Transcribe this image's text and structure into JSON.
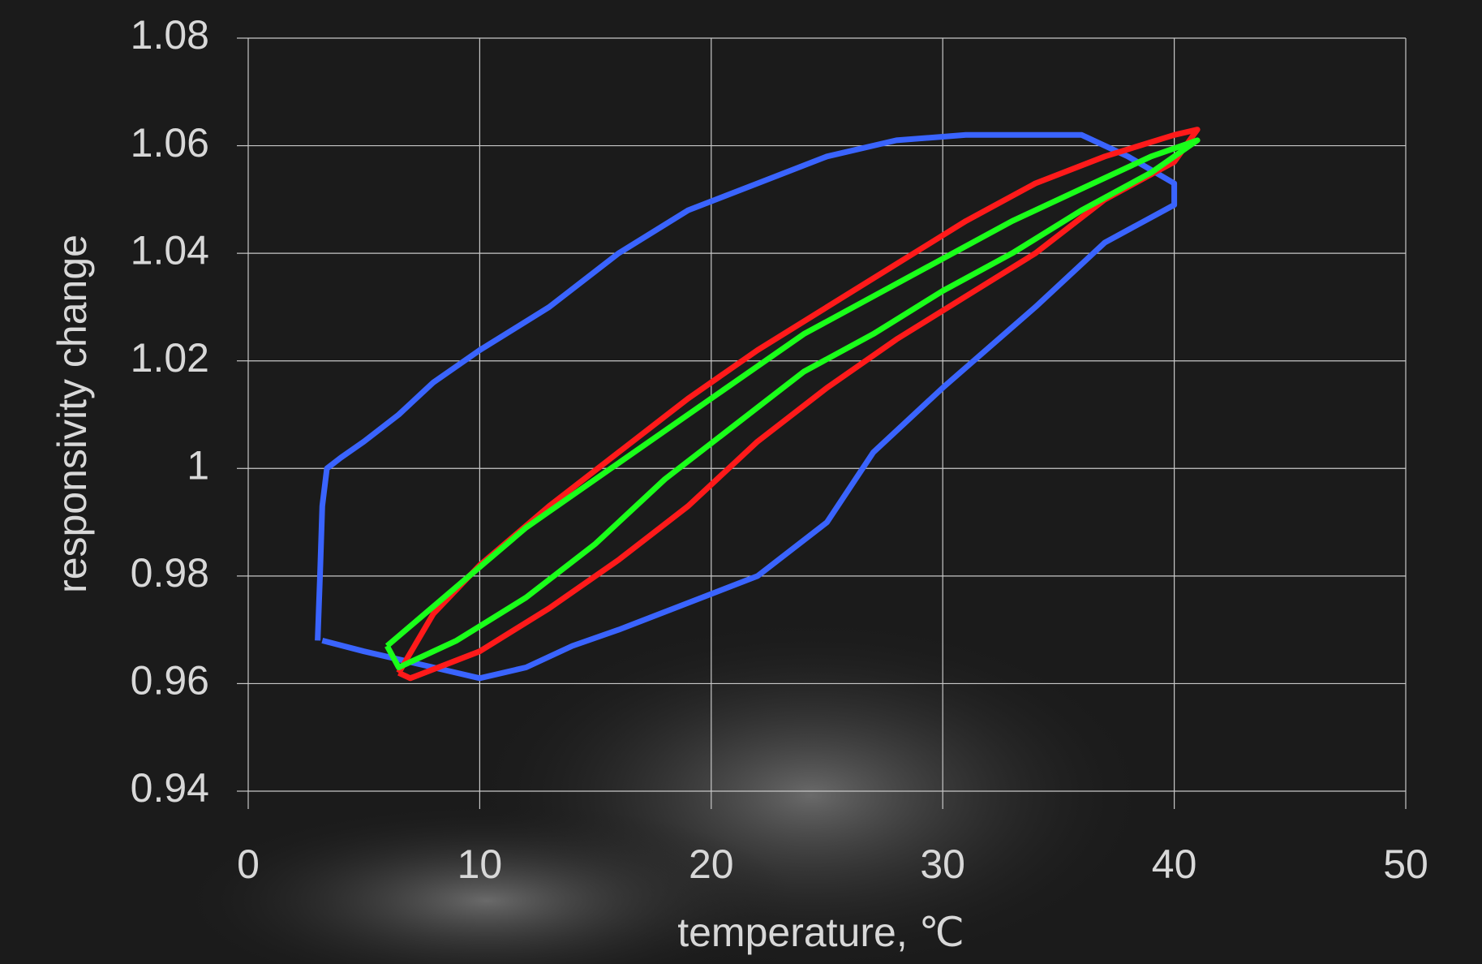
{
  "chart_data": {
    "type": "line",
    "x_label": "temperature, ℃",
    "y_label": "responsivity change",
    "xlim": [
      0,
      50
    ],
    "xticks": [
      0,
      10,
      20,
      30,
      40,
      50
    ],
    "ylim": [
      0.94,
      1.08
    ],
    "yticks": [
      0.94,
      0.96,
      0.98,
      1,
      1.02,
      1.04,
      1.06,
      1.08
    ],
    "grid": true,
    "series": [
      {
        "color": "#3a64ff",
        "x": [
          3,
          3.1,
          3.2,
          3.4,
          4,
          5,
          6.5,
          8,
          10,
          13,
          16,
          19,
          22,
          25,
          28,
          31,
          34,
          36,
          38,
          40,
          40,
          37,
          34,
          30,
          27,
          25,
          22,
          19,
          16,
          14,
          12,
          10,
          8,
          5,
          3.2
        ],
        "values": [
          0.968,
          0.98,
          0.993,
          1.0,
          1.002,
          1.005,
          1.01,
          1.016,
          1.022,
          1.03,
          1.04,
          1.048,
          1.053,
          1.058,
          1.061,
          1.062,
          1.062,
          1.062,
          1.058,
          1.053,
          1.049,
          1.042,
          1.03,
          1.015,
          1.003,
          0.99,
          0.98,
          0.975,
          0.97,
          0.967,
          0.963,
          0.961,
          0.963,
          0.966,
          0.968
        ]
      },
      {
        "color": "#ff1a1a",
        "x": [
          6.5,
          8,
          10,
          13,
          16,
          19,
          22,
          25,
          28,
          31,
          34,
          37,
          40,
          41,
          40,
          37,
          34,
          31,
          28,
          25,
          22,
          19,
          16,
          13,
          10,
          7,
          6.5
        ],
        "values": [
          0.962,
          0.973,
          0.982,
          0.993,
          1.003,
          1.013,
          1.022,
          1.03,
          1.038,
          1.046,
          1.053,
          1.058,
          1.062,
          1.063,
          1.057,
          1.05,
          1.04,
          1.032,
          1.024,
          1.015,
          1.005,
          0.993,
          0.983,
          0.974,
          0.966,
          0.961,
          0.962
        ]
      },
      {
        "color": "#1aff1a",
        "x": [
          6,
          9,
          12,
          15,
          18,
          21,
          24,
          27,
          30,
          33,
          36,
          39,
          41,
          39,
          36,
          33,
          30,
          27,
          24,
          21,
          18,
          15,
          12,
          9,
          6.5,
          6
        ],
        "values": [
          0.967,
          0.978,
          0.989,
          0.998,
          1.007,
          1.016,
          1.025,
          1.032,
          1.039,
          1.046,
          1.052,
          1.058,
          1.061,
          1.055,
          1.048,
          1.04,
          1.033,
          1.025,
          1.018,
          1.008,
          0.998,
          0.986,
          0.976,
          0.968,
          0.963,
          0.967
        ]
      }
    ]
  }
}
